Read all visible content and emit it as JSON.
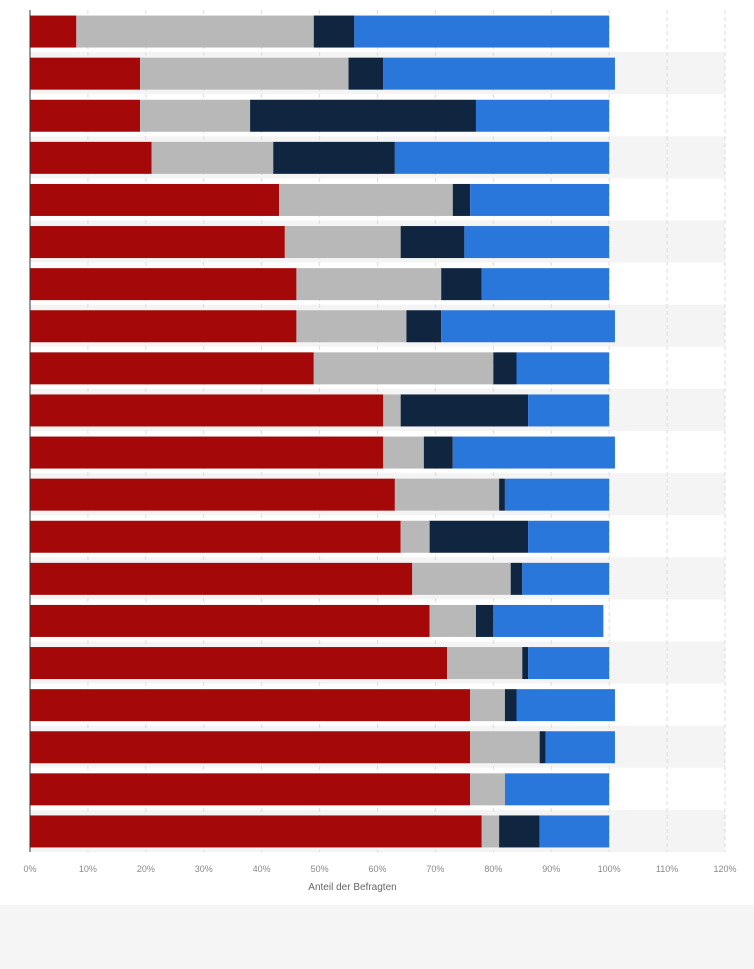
{
  "chart_data": {
    "type": "bar",
    "orientation": "horizontal",
    "stacked": true,
    "xlabel": "Anteil der Befragten",
    "xlim": [
      0,
      120
    ],
    "x_ticks": [
      "0%",
      "10%",
      "20%",
      "30%",
      "40%",
      "50%",
      "60%",
      "70%",
      "80%",
      "90%",
      "100%",
      "110%",
      "120%"
    ],
    "grid": true,
    "legend": "none",
    "series": [
      {
        "color": "#a40808",
        "values": [
          8,
          19,
          19,
          21,
          43,
          44,
          46,
          46,
          49,
          61,
          61,
          63,
          64,
          66,
          69,
          72,
          76,
          76,
          76,
          78
        ]
      },
      {
        "color": "#b8b8b8",
        "values": [
          41,
          36,
          19,
          21,
          30,
          20,
          25,
          19,
          31,
          3,
          7,
          18,
          5,
          17,
          8,
          13,
          6,
          12,
          6,
          3
        ]
      },
      {
        "color": "#10253f",
        "values": [
          7,
          6,
          39,
          21,
          3,
          11,
          7,
          6,
          4,
          22,
          5,
          1,
          17,
          2,
          3,
          1,
          2,
          1,
          0,
          7
        ]
      },
      {
        "color": "#2a77dc",
        "values": [
          44,
          40,
          23,
          37,
          24,
          25,
          22,
          30,
          16,
          14,
          28,
          18,
          14,
          15,
          19,
          14,
          17,
          12,
          18,
          12
        ]
      }
    ]
  }
}
